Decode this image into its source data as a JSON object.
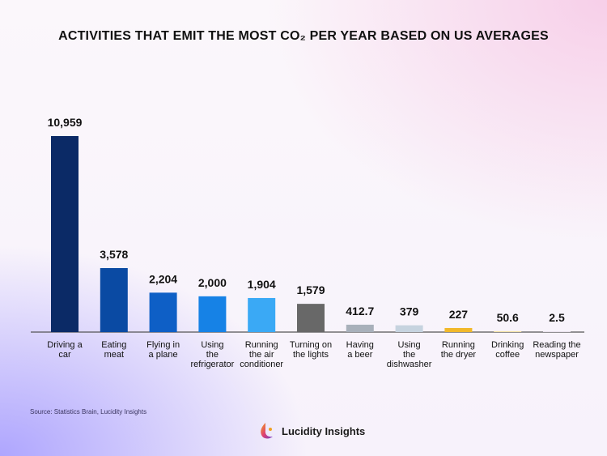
{
  "chart_data": {
    "type": "bar",
    "title": "ACTIVITIES THAT EMIT THE MOST CO₂ PER YEAR BASED ON US AVERAGES",
    "xlabel": "",
    "ylabel": "",
    "ylim": [
      0,
      10959
    ],
    "grid": false,
    "categories": [
      [
        "Driving a",
        "car"
      ],
      [
        "Eating",
        "meat"
      ],
      [
        "Flying in",
        "a plane"
      ],
      [
        "Using",
        "the",
        "refrigerator"
      ],
      [
        "Running",
        "the air",
        "conditioner"
      ],
      [
        "Turning on",
        "the lights"
      ],
      [
        "Having",
        "a beer"
      ],
      [
        "Using",
        "the",
        "dishwasher"
      ],
      [
        "Running",
        "the dryer"
      ],
      [
        "Drinking",
        "coffee"
      ],
      [
        "Reading the",
        "newspaper"
      ]
    ],
    "values": [
      10959,
      3578,
      2204,
      2000,
      1904,
      1579,
      412.7,
      379,
      227,
      50.6,
      2.5
    ],
    "value_labels": [
      "10,959",
      "3,578",
      "2,204",
      "2,000",
      "1,904",
      "1,579",
      "412.7",
      "379",
      "227",
      "50.6",
      "2.5"
    ],
    "colors": [
      "#0b2a66",
      "#0a4aa3",
      "#0e5fc6",
      "#1682e6",
      "#3aa9f5",
      "#686868",
      "#a8b0ba",
      "#c6d3df",
      "#f1b82a",
      "#f2e0a2",
      "#e8e0ea"
    ]
  },
  "source": "Source: Statistics Brain, Lucidity Insights",
  "brand": "Lucidity Insights"
}
